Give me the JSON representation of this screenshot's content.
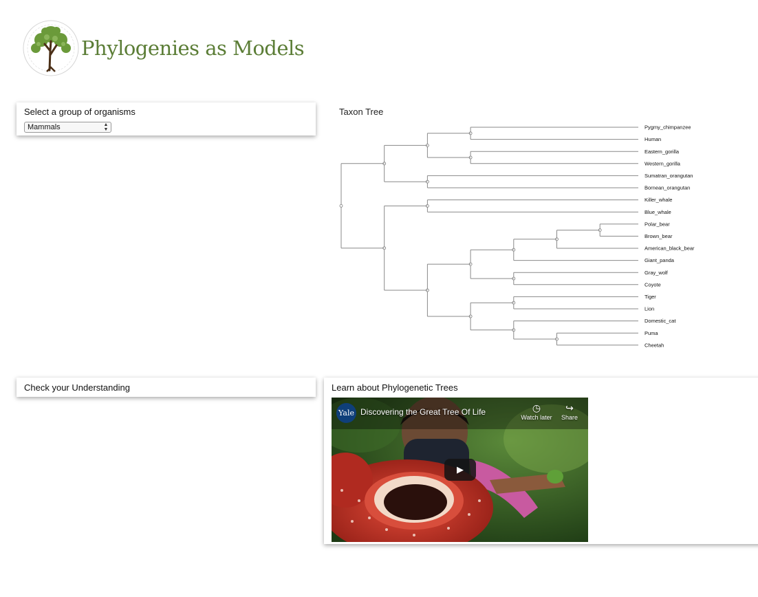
{
  "header": {
    "brand": "Phylogenies as Models"
  },
  "organism_select": {
    "label": "Select a group of organisms",
    "selected": "Mammals"
  },
  "tree": {
    "title": "Taxon Tree",
    "leaves": [
      "Pygmy_chimpanzee",
      "Human",
      "Eastern_gorilla",
      "Western_gorilla",
      "Sumatran_orangutan",
      "Bornean_orangutan",
      "Killer_whale",
      "Blue_whale",
      "Polar_bear",
      "Brown_bear",
      "American_black_bear",
      "Giant_panda",
      "Gray_wolf",
      "Coyote",
      "Tiger",
      "Lion",
      "Domestic_cat",
      "Puma",
      "Cheetah"
    ]
  },
  "check_understanding": {
    "title": "Check your Understanding"
  },
  "learn": {
    "title": "Learn about Phylogenetic Trees",
    "video": {
      "channel_badge": "Yale",
      "title": "Discovering the Great Tree Of Life",
      "watch_later": "Watch later",
      "share": "Share"
    }
  }
}
